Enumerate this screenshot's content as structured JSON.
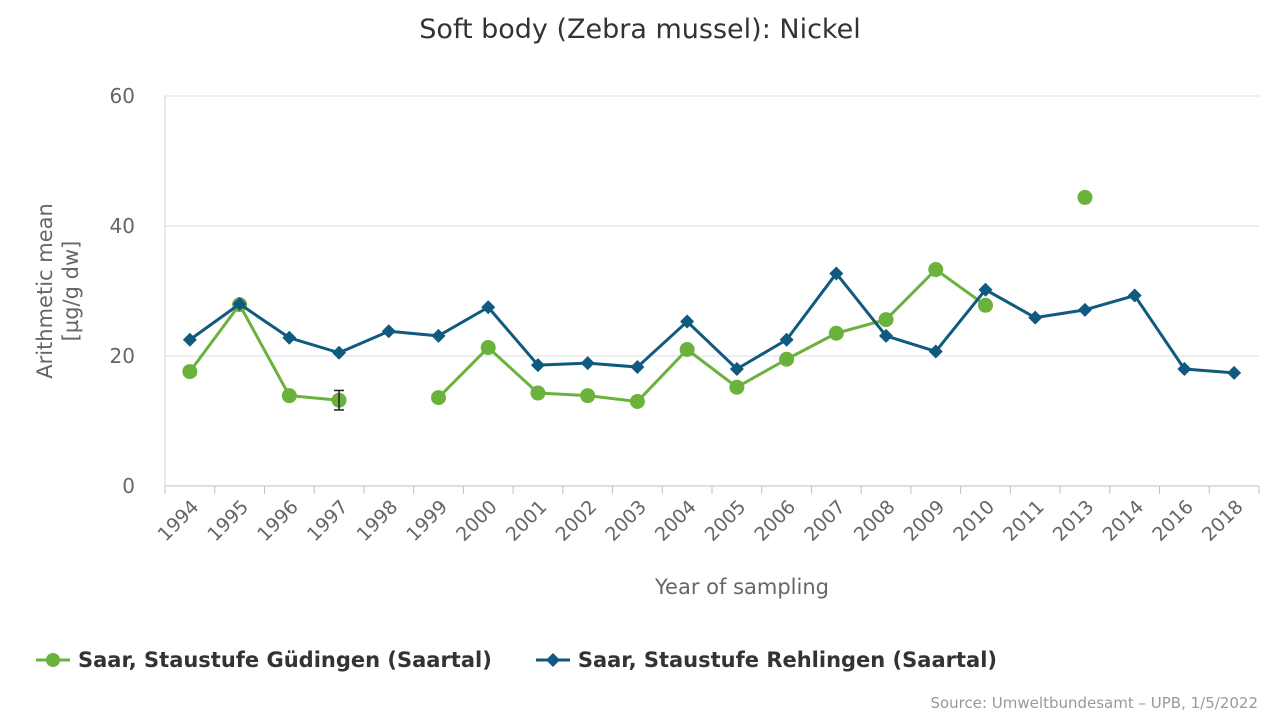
{
  "chart_data": {
    "type": "line",
    "title": "Soft body (Zebra mussel): Nickel",
    "xlabel": "Year of sampling",
    "ylabel": "Arithmetic mean [µg/g dw]",
    "ylim": [
      0,
      60
    ],
    "yticks": [
      "0",
      "20",
      "40",
      "60"
    ],
    "grid": true,
    "legend_position": "bottom",
    "categories": [
      "1994",
      "1995",
      "1996",
      "1997",
      "1998",
      "1999",
      "2000",
      "2001",
      "2002",
      "2003",
      "2004",
      "2005",
      "2006",
      "2007",
      "2008",
      "2009",
      "2010",
      "2011",
      "2013",
      "2014",
      "2016",
      "2018"
    ],
    "series": [
      {
        "name": "Saar, Staustufe Güdingen (Saartal)",
        "color": "#6ab23c",
        "marker": "circle",
        "values": [
          17.6,
          27.9,
          13.9,
          13.2,
          null,
          13.6,
          21.3,
          14.3,
          13.9,
          13.0,
          21.0,
          15.2,
          19.5,
          23.5,
          25.6,
          33.3,
          27.8,
          null,
          44.4,
          null,
          null,
          null
        ],
        "error_bars": [
          null,
          null,
          null,
          [
            11.7,
            14.7
          ],
          null,
          null,
          null,
          null,
          null,
          null,
          null,
          null,
          null,
          null,
          null,
          null,
          null,
          null,
          null,
          null,
          null,
          null
        ]
      },
      {
        "name": "Saar, Staustufe Rehlingen (Saartal)",
        "color": "#0f5a7e",
        "marker": "diamond",
        "values": [
          22.5,
          28.0,
          22.8,
          20.5,
          23.8,
          23.1,
          27.5,
          18.6,
          18.9,
          18.3,
          25.3,
          18.0,
          22.5,
          32.7,
          23.1,
          20.7,
          30.2,
          25.9,
          27.1,
          29.3,
          18.0,
          17.4
        ],
        "error_bars": null
      }
    ]
  },
  "source": "Source: Umweltbundesamt – UPB, 1/5/2022"
}
